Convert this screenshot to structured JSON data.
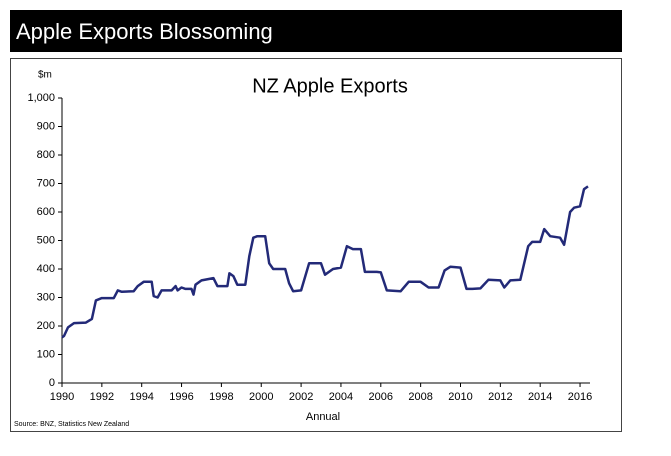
{
  "header": {
    "title": "Apple Exports Blossoming"
  },
  "chart_data": {
    "type": "line",
    "title": "NZ Apple Exports",
    "y_unit": "$m",
    "x_label": "Annual",
    "source": "Source: BNZ, Statistics New Zealand",
    "color": "#232a78",
    "x": [
      1990.0,
      1990.1,
      1990.3,
      1990.6,
      1991.2,
      1991.5,
      1991.7,
      1992.0,
      1992.6,
      1992.8,
      1993.0,
      1993.6,
      1993.8,
      1994.1,
      1994.5,
      1994.6,
      1994.8,
      1995.0,
      1995.5,
      1995.7,
      1995.8,
      1996.0,
      1996.2,
      1996.5,
      1996.6,
      1996.7,
      1997.0,
      1997.6,
      1997.8,
      1998.0,
      1998.3,
      1998.4,
      1998.6,
      1998.8,
      1999.2,
      1999.4,
      1999.6,
      1999.8,
      2000.2,
      2000.4,
      2000.6,
      2001.2,
      2001.4,
      2001.6,
      2002.0,
      2002.4,
      2003.0,
      2003.2,
      2003.6,
      2004.0,
      2004.3,
      2004.6,
      2005.0,
      2005.2,
      2005.8,
      2006.0,
      2006.3,
      2007.0,
      2007.4,
      2008.0,
      2008.4,
      2008.9,
      2009.2,
      2009.5,
      2010.0,
      2010.3,
      2010.6,
      2011.0,
      2011.4,
      2012.0,
      2012.2,
      2012.5,
      2013.0,
      2013.4,
      2013.6,
      2014.0,
      2014.2,
      2014.5,
      2015.0,
      2015.2,
      2015.5,
      2015.7,
      2016.0,
      2016.2,
      2016.4
    ],
    "values": [
      160,
      165,
      195,
      210,
      212,
      225,
      290,
      298,
      298,
      325,
      320,
      322,
      340,
      355,
      355,
      305,
      300,
      325,
      325,
      340,
      325,
      335,
      330,
      330,
      310,
      345,
      360,
      368,
      340,
      340,
      340,
      385,
      375,
      345,
      345,
      445,
      510,
      515,
      515,
      420,
      400,
      400,
      350,
      322,
      325,
      420,
      420,
      380,
      400,
      405,
      480,
      470,
      470,
      390,
      390,
      388,
      325,
      322,
      355,
      355,
      335,
      335,
      395,
      408,
      405,
      330,
      330,
      332,
      362,
      360,
      335,
      360,
      362,
      480,
      495,
      495,
      540,
      515,
      510,
      485,
      600,
      615,
      620,
      680,
      690
    ],
    "xlim": [
      1990,
      2016.5
    ],
    "ylim": [
      0,
      1000
    ],
    "xticks": [
      1990,
      1992,
      1994,
      1996,
      1998,
      2000,
      2002,
      2004,
      2006,
      2008,
      2010,
      2012,
      2014,
      2016
    ],
    "yticks": [
      0,
      100,
      200,
      300,
      400,
      500,
      600,
      700,
      800,
      900,
      {
        "value": 1000,
        "label": "1,000"
      }
    ],
    "grid": false
  }
}
